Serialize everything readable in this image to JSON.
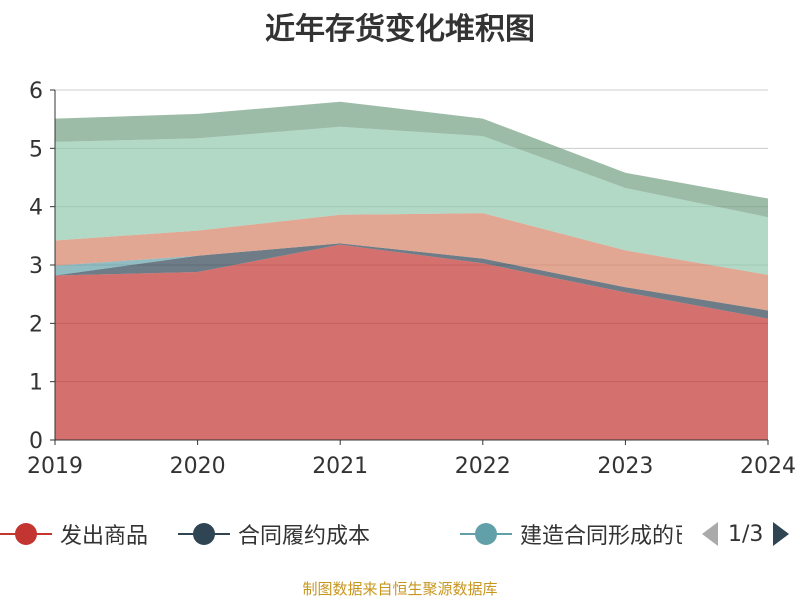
{
  "chart_data": {
    "type": "area",
    "stacked": true,
    "title": "近年存货变化堆积图",
    "categories": [
      "2019",
      "2020",
      "2021",
      "2022",
      "2023",
      "2024"
    ],
    "ylim": [
      0,
      6
    ],
    "yticks": [
      0,
      1,
      2,
      3,
      4,
      5,
      6
    ],
    "grid": true,
    "legend_position": "bottom",
    "series": [
      {
        "name": "发出商品",
        "color": "#c23531",
        "values": [
          2.82,
          2.88,
          3.35,
          3.03,
          2.53,
          2.08
        ]
      },
      {
        "name": "合同履约成本",
        "color": "#2f4554",
        "values": [
          0.0,
          0.28,
          0.02,
          0.08,
          0.09,
          0.14
        ]
      },
      {
        "name": "建造合同形成的已完工未结算资产",
        "color": "#61a0a8",
        "values": [
          0.17,
          0.0,
          0.0,
          0.0,
          0.0,
          0.0
        ]
      },
      {
        "name": "",
        "color": "#d48265",
        "values": [
          0.43,
          0.43,
          0.49,
          0.78,
          0.63,
          0.61
        ]
      },
      {
        "name": "",
        "color": "#91c7ae",
        "values": [
          1.69,
          1.58,
          1.51,
          1.32,
          1.07,
          0.99
        ]
      },
      {
        "name": "",
        "color": "#749f83",
        "values": [
          0.4,
          0.42,
          0.43,
          0.3,
          0.26,
          0.32
        ]
      }
    ]
  },
  "legend": {
    "items": [
      {
        "label": "发出商品",
        "color": "#c23531"
      },
      {
        "label": "合同履约成本",
        "color": "#2f4554"
      },
      {
        "label": "建造合同形成的已完工未结算资产",
        "color": "#61a0a8"
      }
    ],
    "page_text": "1/3",
    "prev_color": "#aaaaaa",
    "next_color": "#2f4554"
  },
  "source": "制图数据来自恒生聚源数据库"
}
